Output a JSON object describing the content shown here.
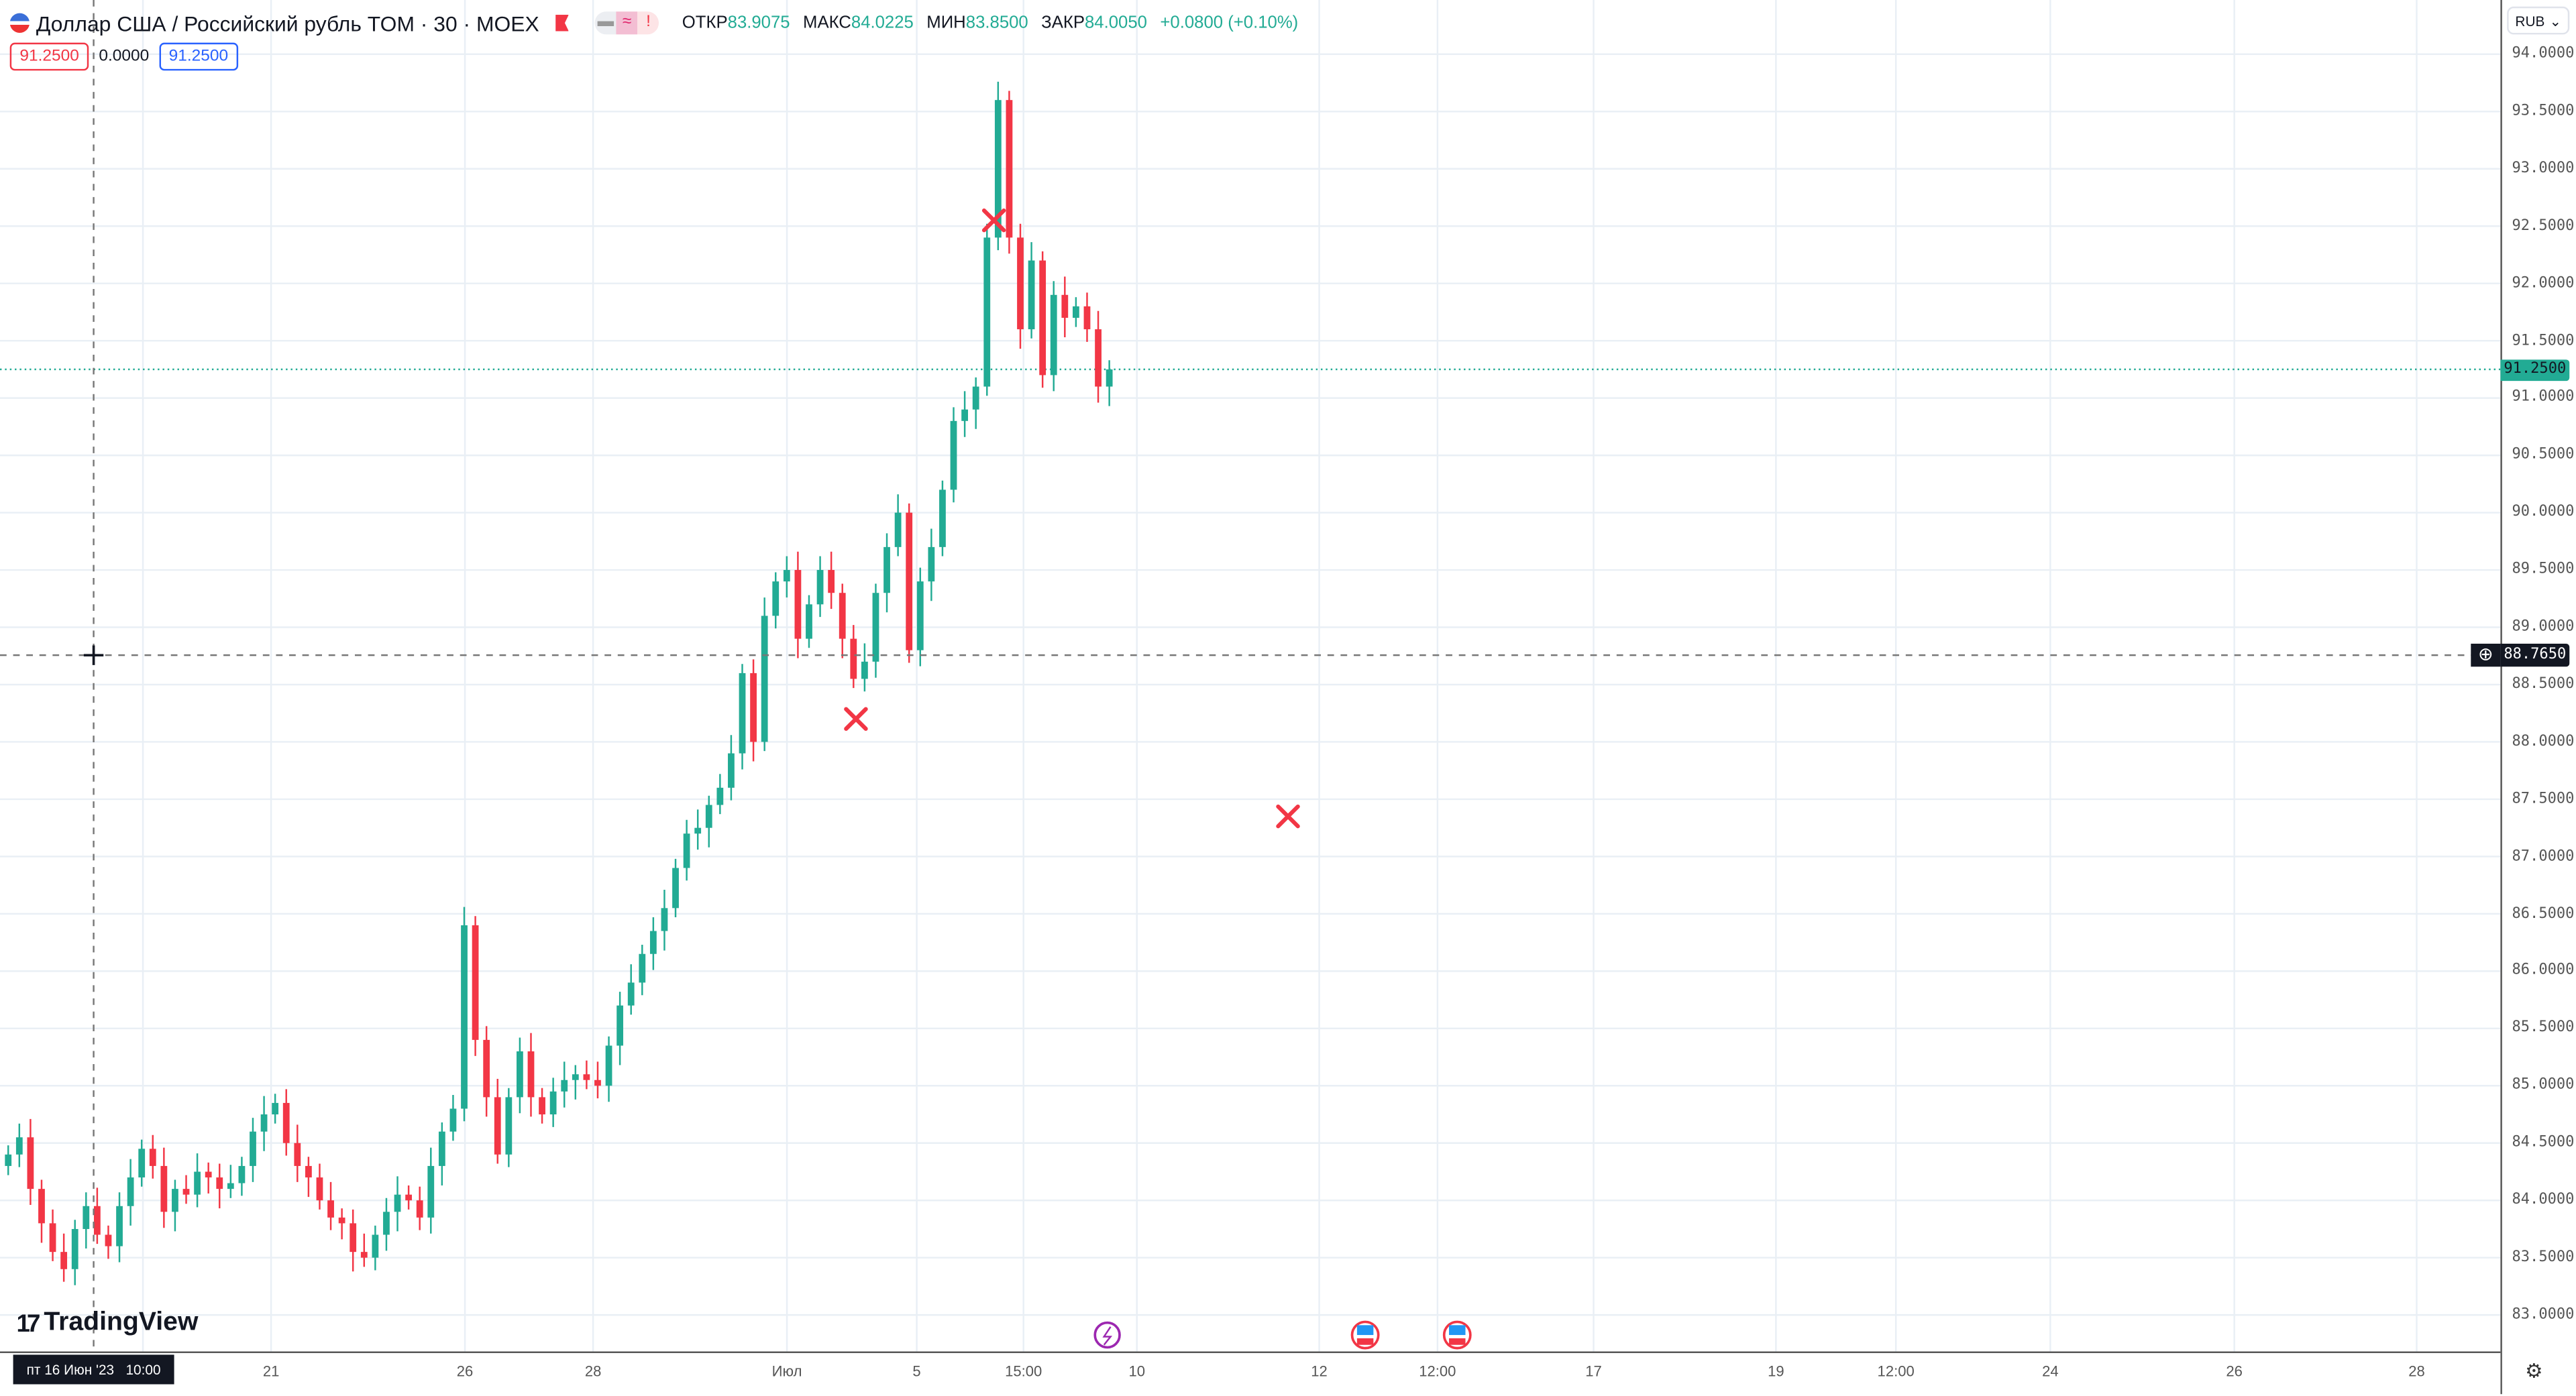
{
  "header": {
    "title": "Доллар США / Российский рубль TOM · 30 · MOEX",
    "open_label": "ОТКР",
    "open": "83.9075",
    "high_label": "МАКС",
    "high": "84.0225",
    "low_label": "МИН",
    "low": "83.8500",
    "close_label": "ЗАКР",
    "close": "84.0050",
    "change": "+0.0800 (+0.10%)",
    "pill_icons": [
      "dash-icon",
      "wave-icon",
      "alert-icon"
    ]
  },
  "prices": {
    "sell": "91.2500",
    "spread": "0.0000",
    "buy": "91.2500"
  },
  "currency": "RUB",
  "last_price_label": "91.2500",
  "crosshair": {
    "price_label": "88.7650",
    "date_label": "пт 16 Июн '23   10:00"
  },
  "logo": "TradingView",
  "colors": {
    "up": "#22ab94",
    "down": "#f23645",
    "grid": "#e9eff5",
    "accent": "#2962ff"
  },
  "chart_data": {
    "type": "candlestick",
    "first_open": 84.3,
    "closes": [
      84.4,
      84.55,
      84.1,
      83.8,
      83.55,
      83.4,
      83.75,
      83.95,
      83.7,
      83.6,
      83.95,
      84.2,
      84.45,
      84.3,
      83.9,
      84.1,
      84.05,
      84.25,
      84.2,
      84.1,
      84.15,
      84.3,
      84.6,
      84.75,
      84.85,
      84.5,
      84.3,
      84.2,
      84.0,
      83.85,
      83.8,
      83.55,
      83.5,
      83.7,
      83.9,
      84.05,
      84.0,
      83.85,
      84.3,
      84.6,
      84.8,
      86.4,
      85.4,
      84.9,
      84.4,
      84.9,
      85.3,
      84.9,
      84.75,
      84.95,
      85.05,
      85.1,
      85.05,
      85.0,
      85.35,
      85.7,
      85.9,
      86.15,
      86.35,
      86.55,
      86.9,
      87.2,
      87.25,
      87.45,
      87.6,
      87.9,
      88.6,
      88.0,
      89.1,
      89.4,
      89.5,
      88.9,
      89.2,
      89.5,
      89.3,
      88.9,
      88.55,
      88.7,
      89.3,
      89.7,
      90.0,
      88.8,
      89.4,
      89.7,
      90.2,
      90.8,
      90.9,
      91.1,
      92.4,
      93.6,
      92.4,
      91.6,
      92.2,
      91.2,
      91.9,
      91.7,
      91.8,
      91.6,
      91.1,
      91.25
    ],
    "ylim": [
      82.8,
      94.2
    ],
    "yticks": [
      "94.0000",
      "93.5000",
      "93.0000",
      "92.5000",
      "92.0000",
      "91.5000",
      "91.0000",
      "90.5000",
      "90.0000",
      "89.5000",
      "89.0000",
      "88.5000",
      "88.0000",
      "87.5000",
      "87.0000",
      "86.5000",
      "86.0000",
      "85.5000",
      "85.0000",
      "84.5000",
      "84.0000",
      "83.5000",
      "83.0000"
    ],
    "xticks": [
      "21",
      "26",
      "28",
      "Июл",
      "5",
      "15:00",
      "10",
      "12",
      "12:00",
      "17",
      "19",
      "12:00",
      "24",
      "26",
      "28"
    ],
    "markers": [
      {
        "type": "x",
        "price": 92.55
      },
      {
        "type": "x",
        "price": 88.2
      },
      {
        "type": "x",
        "price": 87.35
      }
    ],
    "events": [
      "lightning-event",
      "us-flag-event",
      "us-flag-event"
    ]
  }
}
